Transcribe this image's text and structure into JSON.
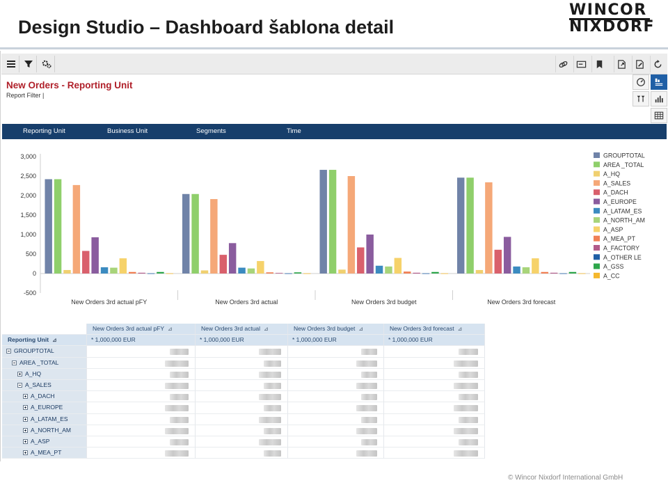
{
  "slide": {
    "title": "Design Studio – Dashboard šablona detail",
    "logo_line1": "WINCOR",
    "logo_line2": "NIXDORF",
    "footer": "© Wincor Nixdorf International GmbH"
  },
  "report": {
    "title": "New Orders - Reporting Unit",
    "filter": "Report Filter |"
  },
  "filter_bar": [
    "Reporting Unit",
    "Business Unit",
    "Segments",
    "Time"
  ],
  "toolbar": {
    "left_icons": [
      "menu-icon",
      "filter-icon",
      "settings-icon"
    ],
    "right_icons": [
      "link-icon",
      "card-icon",
      "bookmark-icon",
      "export-icon",
      "edit-icon",
      "refresh-icon"
    ]
  },
  "side_buttons": [
    "gauge-icon",
    "chart-table-icon",
    "sort-icon",
    "bar-chart-icon",
    "table-icon"
  ],
  "colors": {
    "accent_title": "#b0202a",
    "filter_bar": "#173e6b",
    "table_header": "#d6e3f0"
  },
  "chart_data": {
    "type": "bar",
    "categories": [
      "New Orders 3rd actual pFY",
      "New Orders 3rd actual",
      "New Orders 3rd budget",
      "New Orders 3rd forecast"
    ],
    "ylim": [
      -500,
      3000
    ],
    "yticks": [
      "3,000",
      "2,500",
      "2,000",
      "1,500",
      "1,000",
      "500",
      "0",
      "-500"
    ],
    "grid": false,
    "legend_position": "right",
    "series": [
      {
        "name": "GROUPTOTAL",
        "color": "#7083a8",
        "values": [
          2420,
          2040,
          2660,
          2460
        ]
      },
      {
        "name": "AREA _TOTAL",
        "color": "#8fcf6b",
        "values": [
          2420,
          2040,
          2660,
          2460
        ]
      },
      {
        "name": "A_HQ",
        "color": "#f0d070",
        "values": [
          90,
          80,
          100,
          90
        ]
      },
      {
        "name": "A_SALES",
        "color": "#f5a878",
        "values": [
          2270,
          1910,
          2500,
          2340
        ]
      },
      {
        "name": "A_DACH",
        "color": "#d9606c",
        "values": [
          580,
          480,
          670,
          610
        ]
      },
      {
        "name": "A_EUROPE",
        "color": "#8a5c9e",
        "values": [
          930,
          780,
          1000,
          940
        ]
      },
      {
        "name": "A_LATAM_ES",
        "color": "#3b8bc0",
        "values": [
          160,
          150,
          200,
          180
        ]
      },
      {
        "name": "A_NORTH_AM",
        "color": "#a8d47a",
        "values": [
          150,
          130,
          180,
          160
        ]
      },
      {
        "name": "A_ASP",
        "color": "#f6d26a",
        "values": [
          390,
          320,
          400,
          390
        ]
      },
      {
        "name": "A_MEA_PT",
        "color": "#f08055",
        "values": [
          40,
          30,
          50,
          40
        ]
      },
      {
        "name": "A_FACTORY",
        "color": "#b25a8a",
        "values": [
          20,
          15,
          20,
          20
        ]
      },
      {
        "name": "A_OTHER LE",
        "color": "#1f5fa6",
        "values": [
          5,
          5,
          5,
          5
        ]
      },
      {
        "name": "A_GSS",
        "color": "#2ea64b",
        "values": [
          40,
          30,
          40,
          40
        ]
      },
      {
        "name": "A_CC",
        "color": "#f5b82e",
        "values": [
          5,
          5,
          5,
          5
        ]
      }
    ]
  },
  "table": {
    "corner_label": "Reporting Unit",
    "columns": [
      {
        "title": "New Orders 3rd actual pFY",
        "unit": "* 1,000,000 EUR"
      },
      {
        "title": "New Orders 3rd actual",
        "unit": "* 1,000,000 EUR"
      },
      {
        "title": "New Orders 3rd budget",
        "unit": "* 1,000,000 EUR"
      },
      {
        "title": "New Orders 3rd forecast",
        "unit": "* 1,000,000 EUR"
      }
    ],
    "rows": [
      {
        "label": "GROUPTOTAL",
        "level": 0,
        "expand": "minus"
      },
      {
        "label": "AREA _TOTAL",
        "level": 1,
        "expand": "minus"
      },
      {
        "label": "A_HQ",
        "level": 2,
        "expand": "plus"
      },
      {
        "label": "A_SALES",
        "level": 2,
        "expand": "minus"
      },
      {
        "label": "A_DACH",
        "level": 3,
        "expand": "plus"
      },
      {
        "label": "A_EUROPE",
        "level": 3,
        "expand": "plus"
      },
      {
        "label": "A_LATAM_ES",
        "level": 3,
        "expand": "plus"
      },
      {
        "label": "A_NORTH_AM",
        "level": 3,
        "expand": "plus"
      },
      {
        "label": "A_ASP",
        "level": 3,
        "expand": "plus"
      },
      {
        "label": "A_MEA_PT",
        "level": 3,
        "expand": "plus"
      }
    ]
  }
}
